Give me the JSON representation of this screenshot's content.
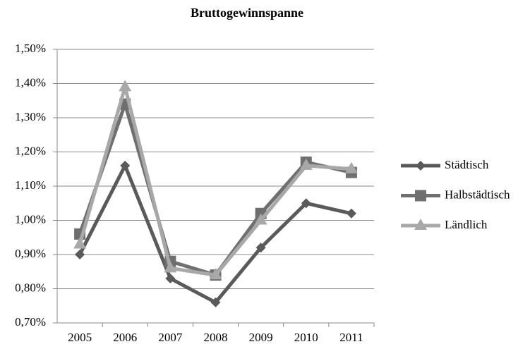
{
  "chart_data": {
    "type": "line",
    "title": "Bruttogewinnspanne",
    "categories": [
      "2005",
      "2006",
      "2007",
      "2008",
      "2009",
      "2010",
      "2011"
    ],
    "series": [
      {
        "name": "Städtisch",
        "color": "#5a5a5a",
        "marker": "diamond",
        "values": [
          0.9,
          1.16,
          0.83,
          0.76,
          0.92,
          1.05,
          1.02
        ]
      },
      {
        "name": "Halbstädtisch",
        "color": "#6f6f6f",
        "marker": "square",
        "values": [
          0.96,
          1.34,
          0.88,
          0.84,
          1.02,
          1.17,
          1.14
        ]
      },
      {
        "name": "Ländlich",
        "color": "#a8a8a8",
        "marker": "triangle",
        "values": [
          0.93,
          1.39,
          0.86,
          0.84,
          1.0,
          1.16,
          1.15
        ]
      }
    ],
    "ylim": [
      0.7,
      1.5
    ],
    "yticks": [
      {
        "value": 0.7,
        "label": "0,70%"
      },
      {
        "value": 0.8,
        "label": "0,80%"
      },
      {
        "value": 0.9,
        "label": "0,90%"
      },
      {
        "value": 1.0,
        "label": "1,00%"
      },
      {
        "value": 1.1,
        "label": "1,10%"
      },
      {
        "value": 1.2,
        "label": "1,20%"
      },
      {
        "value": 1.3,
        "label": "1,30%"
      },
      {
        "value": 1.4,
        "label": "1,40%"
      },
      {
        "value": 1.5,
        "label": "1,50%"
      }
    ],
    "grid": true,
    "legend": "right"
  }
}
